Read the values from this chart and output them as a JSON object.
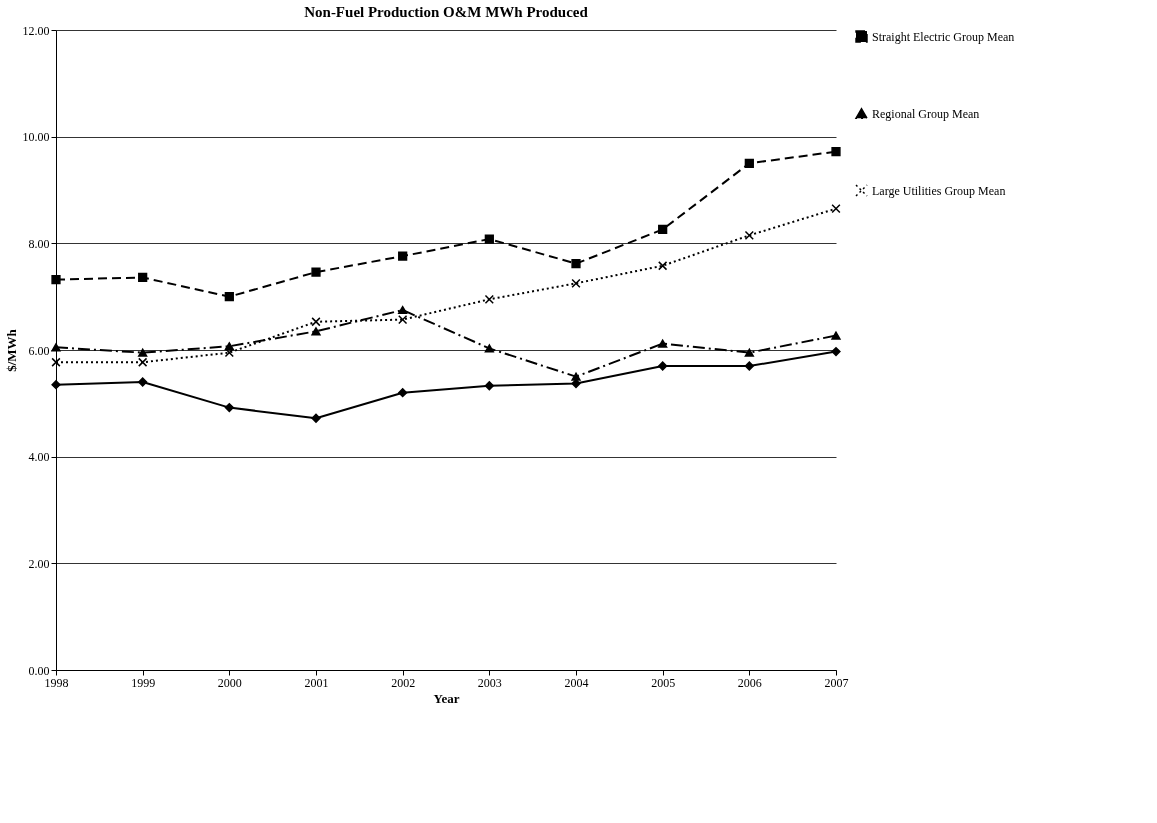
{
  "chart_data": {
    "type": "line",
    "title": "Non-Fuel Production O&M MWh Produced",
    "xlabel": "Year",
    "ylabel": "$/MWh",
    "categories": [
      "1998",
      "1999",
      "2000",
      "2001",
      "2002",
      "2003",
      "2004",
      "2005",
      "2006",
      "2007"
    ],
    "series": [
      {
        "color": "#000000",
        "marker": "diamond",
        "line_style": "solid",
        "values": [
          5.35,
          5.4,
          4.92,
          4.72,
          5.2,
          5.33,
          5.37,
          5.7,
          5.7,
          5.97
        ]
      },
      {
        "name": "Straight Electric Group Mean",
        "color": "#000000",
        "marker": "square",
        "line_style": "dashed",
        "values": [
          7.32,
          7.36,
          7.0,
          7.46,
          7.76,
          8.08,
          7.62,
          8.26,
          9.5,
          9.72
        ]
      },
      {
        "name": "Regional Group Mean",
        "color": "#000000",
        "marker": "triangle",
        "line_style": "dashdot",
        "values": [
          6.05,
          5.95,
          6.07,
          6.35,
          6.75,
          6.03,
          5.5,
          6.12,
          5.95,
          6.27
        ]
      },
      {
        "name": "Large Utilities Group Mean",
        "color": "#000000",
        "marker": "cross",
        "line_style": "dotted",
        "values": [
          5.77,
          5.77,
          5.95,
          6.53,
          6.57,
          6.95,
          7.25,
          7.58,
          8.15,
          8.65
        ]
      }
    ],
    "ylim": [
      0,
      12
    ],
    "yticks": [
      {
        "value": 0,
        "label": "0.00"
      },
      {
        "value": 2,
        "label": "2.00"
      },
      {
        "value": 4,
        "label": "4.00"
      },
      {
        "value": 6,
        "label": "6.00"
      },
      {
        "value": 8,
        "label": "8.00"
      },
      {
        "value": 10,
        "label": "10.00"
      },
      {
        "value": 12,
        "label": "12.00"
      }
    ],
    "grid": "y",
    "legend": "right"
  }
}
